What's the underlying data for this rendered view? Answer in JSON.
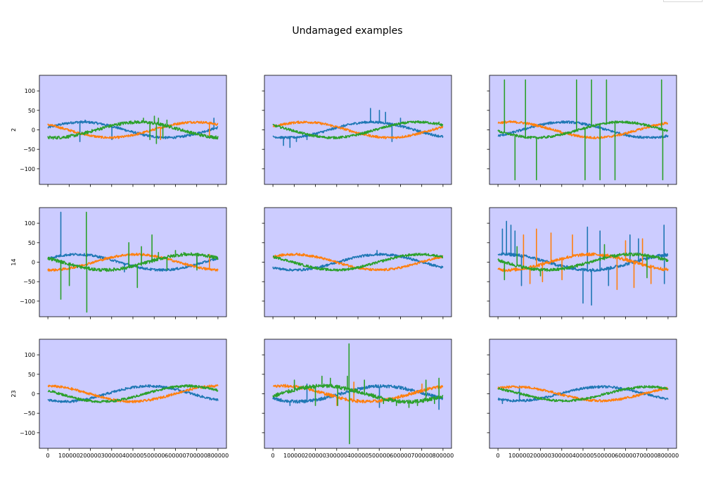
{
  "figure": {
    "title": "Undamaged examples",
    "colors": {
      "background": "#ccccff",
      "phase_0": "#1f77b4",
      "phase_1": "#ff7f0e",
      "phase_2": "#2ca02c"
    }
  },
  "chart_data": [
    {
      "type": "line",
      "row": 0,
      "col": 0,
      "ylabel": "2",
      "x": [
        0,
        800000
      ],
      "ylim": [
        -140,
        140
      ],
      "yticks": [
        100,
        50,
        0,
        -50,
        -100
      ],
      "ytick_labels": [
        "100",
        "50",
        "0",
        "−50",
        "−100"
      ],
      "show_yticks": true,
      "show_xticks": false,
      "series": [
        {
          "amplitude": 20,
          "phase": 0.3,
          "noise": 3,
          "spikes": [
            [
              150000,
              -30
            ],
            [
              175000,
              25
            ],
            [
              220000,
              20
            ],
            [
              300000,
              -25
            ],
            [
              780000,
              30
            ]
          ]
        },
        {
          "amplitude": 20,
          "phase": 2.4,
          "noise": 3,
          "spikes": [
            [
              530000,
              -25
            ],
            [
              740000,
              20
            ],
            [
              760000,
              -15
            ]
          ]
        },
        {
          "amplitude": 20,
          "phase": 4.5,
          "noise": 4,
          "spikes": [
            [
              450000,
              30
            ],
            [
              480000,
              -25
            ],
            [
              500000,
              35
            ],
            [
              510000,
              -35
            ],
            [
              520000,
              30
            ],
            [
              540000,
              -20
            ],
            [
              560000,
              25
            ]
          ]
        }
      ]
    },
    {
      "type": "line",
      "row": 0,
      "col": 1,
      "ylabel": "",
      "x": [
        0,
        800000
      ],
      "ylim": [
        -140,
        140
      ],
      "yticks": [
        100,
        50,
        0,
        -50,
        -100
      ],
      "ytick_labels": [
        "100",
        "50",
        "0",
        "−50",
        "−100"
      ],
      "show_yticks": false,
      "show_xticks": false,
      "series": [
        {
          "amplitude": 20,
          "phase": 4.2,
          "noise": 3,
          "spikes": [
            [
              50000,
              -40
            ],
            [
              80000,
              -45
            ],
            [
              110000,
              -30
            ],
            [
              160000,
              -25
            ],
            [
              460000,
              55
            ],
            [
              500000,
              50
            ],
            [
              530000,
              45
            ],
            [
              560000,
              -30
            ],
            [
              600000,
              30
            ]
          ]
        },
        {
          "amplitude": 20,
          "phase": 0.4,
          "noise": 3,
          "spikes": []
        },
        {
          "amplitude": 20,
          "phase": 2.5,
          "noise": 3,
          "spikes": [
            [
              780000,
              20
            ]
          ]
        }
      ]
    },
    {
      "type": "line",
      "row": 0,
      "col": 2,
      "ylabel": "",
      "x": [
        0,
        800000
      ],
      "ylim": [
        -140,
        140
      ],
      "yticks": [
        100,
        50,
        0,
        -50,
        -100
      ],
      "ytick_labels": [
        "100",
        "50",
        "0",
        "−50",
        "−100"
      ],
      "show_yticks": false,
      "show_xticks": false,
      "series": [
        {
          "amplitude": 20,
          "phase": 5.4,
          "noise": 3,
          "spikes": []
        },
        {
          "amplitude": 20,
          "phase": 1.1,
          "noise": 3,
          "spikes": []
        },
        {
          "amplitude": 20,
          "phase": 3.3,
          "noise": 3,
          "spikes": [
            [
              30000,
              128
            ],
            [
              80000,
              -128
            ],
            [
              130000,
              128
            ],
            [
              180000,
              -128
            ],
            [
              370000,
              128
            ],
            [
              410000,
              -128
            ],
            [
              440000,
              128
            ],
            [
              480000,
              -128
            ],
            [
              510000,
              128
            ],
            [
              550000,
              -128
            ],
            [
              770000,
              128
            ],
            [
              775000,
              -128
            ]
          ]
        }
      ]
    },
    {
      "type": "line",
      "row": 1,
      "col": 0,
      "ylabel": "14",
      "x": [
        0,
        800000
      ],
      "ylim": [
        -140,
        140
      ],
      "yticks": [
        100,
        50,
        0,
        -50,
        -100
      ],
      "ytick_labels": [
        "100",
        "50",
        "0",
        "−50",
        "−100"
      ],
      "show_yticks": true,
      "show_xticks": false,
      "series": [
        {
          "amplitude": 20,
          "phase": 0.5,
          "noise": 3,
          "spikes": [
            [
              60000,
              128
            ],
            [
              360000,
              -25
            ],
            [
              380000,
              20
            ],
            [
              700000,
              15
            ]
          ]
        },
        {
          "amplitude": 20,
          "phase": 4.6,
          "noise": 3,
          "spikes": [
            [
              740000,
              -20
            ],
            [
              760000,
              20
            ]
          ]
        },
        {
          "amplitude": 20,
          "phase": 2.6,
          "noise": 4,
          "spikes": [
            [
              60000,
              -95
            ],
            [
              100000,
              -60
            ],
            [
              180000,
              128
            ],
            [
              182000,
              -128
            ],
            [
              380000,
              50
            ],
            [
              420000,
              -65
            ],
            [
              440000,
              40
            ],
            [
              490000,
              70
            ],
            [
              520000,
              25
            ],
            [
              560000,
              -20
            ],
            [
              600000,
              30
            ],
            [
              640000,
              25
            ],
            [
              700000,
              -20
            ]
          ]
        }
      ]
    },
    {
      "type": "line",
      "row": 1,
      "col": 1,
      "ylabel": "",
      "x": [
        0,
        800000
      ],
      "ylim": [
        -140,
        140
      ],
      "yticks": [
        100,
        50,
        0,
        -50,
        -100
      ],
      "ytick_labels": [
        "100",
        "50",
        "0",
        "−50",
        "−100"
      ],
      "show_yticks": false,
      "show_xticks": false,
      "series": [
        {
          "amplitude": 20,
          "phase": 3.9,
          "noise": 3,
          "spikes": [
            [
              490000,
              30
            ]
          ]
        },
        {
          "amplitude": 20,
          "phase": 0.8,
          "noise": 3,
          "spikes": []
        },
        {
          "amplitude": 20,
          "phase": 2.4,
          "noise": 3,
          "spikes": []
        }
      ]
    },
    {
      "type": "line",
      "row": 1,
      "col": 2,
      "ylabel": "",
      "x": [
        0,
        800000
      ],
      "ylim": [
        -140,
        140
      ],
      "yticks": [
        100,
        50,
        0,
        -50,
        -100
      ],
      "ytick_labels": [
        "100",
        "50",
        "0",
        "−50",
        "−100"
      ],
      "show_yticks": false,
      "show_xticks": false,
      "series": [
        {
          "amplitude": 20,
          "phase": 1.3,
          "noise": 4,
          "spikes": [
            [
              20000,
              85
            ],
            [
              40000,
              105
            ],
            [
              60000,
              95
            ],
            [
              80000,
              80
            ],
            [
              110000,
              -60
            ],
            [
              400000,
              -105
            ],
            [
              420000,
              90
            ],
            [
              440000,
              -110
            ],
            [
              480000,
              80
            ],
            [
              520000,
              -60
            ],
            [
              620000,
              70
            ],
            [
              660000,
              60
            ],
            [
              780000,
              95
            ],
            [
              782000,
              -55
            ]
          ]
        },
        {
          "amplitude": 20,
          "phase": 4.4,
          "noise": 4,
          "spikes": [
            [
              120000,
              70
            ],
            [
              150000,
              -55
            ],
            [
              180000,
              85
            ],
            [
              210000,
              -50
            ],
            [
              250000,
              75
            ],
            [
              300000,
              -45
            ],
            [
              350000,
              70
            ],
            [
              560000,
              -70
            ],
            [
              600000,
              55
            ],
            [
              640000,
              -65
            ],
            [
              680000,
              60
            ],
            [
              720000,
              -55
            ]
          ]
        },
        {
          "amplitude": 20,
          "phase": 2.9,
          "noise": 4,
          "spikes": [
            [
              30000,
              -45
            ],
            [
              90000,
              40
            ],
            [
              200000,
              -35
            ],
            [
              500000,
              45
            ],
            [
              700000,
              -40
            ]
          ]
        }
      ]
    },
    {
      "type": "line",
      "row": 2,
      "col": 0,
      "ylabel": "23",
      "x": [
        0,
        800000
      ],
      "ylim": [
        -140,
        140
      ],
      "yticks": [
        100,
        50,
        0,
        -50,
        -100
      ],
      "ytick_labels": [
        "100",
        "50",
        "0",
        "−50",
        "−100"
      ],
      "show_yticks": true,
      "show_xticks": true,
      "xticks": [
        0,
        100000,
        200000,
        300000,
        400000,
        500000,
        600000,
        700000,
        800000
      ],
      "xtick_labels": [
        "0",
        "100000",
        "200000",
        "300000",
        "400000",
        "500000",
        "600000",
        "700000",
        "800000"
      ],
      "series": [
        {
          "amplitude": 20,
          "phase": 4.1,
          "noise": 3,
          "spikes": []
        },
        {
          "amplitude": 20,
          "phase": 1.6,
          "noise": 3,
          "spikes": []
        },
        {
          "amplitude": 20,
          "phase": 2.7,
          "noise": 3,
          "spikes": []
        }
      ]
    },
    {
      "type": "line",
      "row": 2,
      "col": 1,
      "ylabel": "",
      "x": [
        0,
        800000
      ],
      "ylim": [
        -140,
        140
      ],
      "yticks": [
        100,
        50,
        0,
        -50,
        -100
      ],
      "ytick_labels": [
        "100",
        "50",
        "0",
        "−50",
        "−100"
      ],
      "show_yticks": false,
      "show_xticks": true,
      "xticks": [
        0,
        100000,
        200000,
        300000,
        400000,
        500000,
        600000,
        700000,
        800000
      ],
      "xtick_labels": [
        "0",
        "100000",
        "200000",
        "300000",
        "400000",
        "500000",
        "600000",
        "700000",
        "800000"
      ],
      "series": [
        {
          "amplitude": 20,
          "phase": 3.8,
          "noise": 4,
          "spikes": [
            [
              80000,
              -30
            ],
            [
              160000,
              25
            ],
            [
              500000,
              -35
            ],
            [
              780000,
              -40
            ]
          ]
        },
        {
          "amplitude": 20,
          "phase": 1.2,
          "noise": 4,
          "spikes": [
            [
              300000,
              -30
            ],
            [
              380000,
              30
            ],
            [
              700000,
              25
            ]
          ]
        },
        {
          "amplitude": 20,
          "phase": 6.0,
          "noise": 5,
          "spikes": [
            [
              100000,
              35
            ],
            [
              200000,
              -30
            ],
            [
              230000,
              45
            ],
            [
              270000,
              40
            ],
            [
              305000,
              -30
            ],
            [
              350000,
              45
            ],
            [
              358000,
              128
            ],
            [
              360000,
              -128
            ],
            [
              430000,
              35
            ],
            [
              520000,
              -25
            ],
            [
              580000,
              -30
            ],
            [
              640000,
              -35
            ],
            [
              680000,
              -30
            ],
            [
              720000,
              35
            ],
            [
              760000,
              -25
            ],
            [
              780000,
              40
            ]
          ]
        }
      ]
    },
    {
      "type": "line",
      "row": 2,
      "col": 2,
      "ylabel": "",
      "x": [
        0,
        800000
      ],
      "ylim": [
        -140,
        140
      ],
      "yticks": [
        100,
        50,
        0,
        -50,
        -100
      ],
      "ytick_labels": [
        "100",
        "50",
        "0",
        "−50",
        "−100"
      ],
      "show_yticks": false,
      "show_xticks": true,
      "xticks": [
        0,
        100000,
        200000,
        300000,
        400000,
        500000,
        600000,
        700000,
        800000
      ],
      "xtick_labels": [
        "0",
        "100000",
        "200000",
        "300000",
        "400000",
        "500000",
        "600000",
        "700000",
        "800000"
      ],
      "series": [
        {
          "amplitude": 18,
          "phase": 4.0,
          "noise": 3,
          "spikes": [
            [
              20000,
              -25
            ],
            [
              100000,
              20
            ]
          ]
        },
        {
          "amplitude": 18,
          "phase": 0.9,
          "noise": 3,
          "spikes": []
        },
        {
          "amplitude": 18,
          "phase": 2.3,
          "noise": 3,
          "spikes": [
            [
              760000,
              15
            ]
          ]
        }
      ]
    }
  ]
}
